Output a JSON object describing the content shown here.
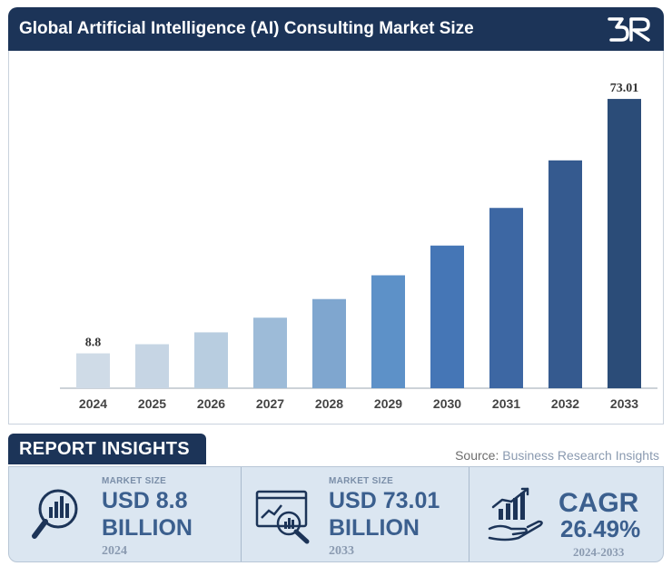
{
  "header": {
    "title": "Global Artificial Intelligence (AI) Consulting Market Size"
  },
  "chart_data": {
    "type": "bar",
    "categories": [
      "2024",
      "2025",
      "2026",
      "2027",
      "2028",
      "2029",
      "2030",
      "2031",
      "2032",
      "2033"
    ],
    "values": [
      8.8,
      11.1,
      14.1,
      17.8,
      22.5,
      28.5,
      36.0,
      45.5,
      57.5,
      73.01
    ],
    "data_labels": [
      "8.8",
      "",
      "",
      "",
      "",
      "",
      "",
      "",
      "",
      "73.01"
    ],
    "colors": [
      "#cfdbe7",
      "#c6d5e4",
      "#b8cde0",
      "#9dbbd8",
      "#7fa6cf",
      "#5d91c8",
      "#4576b6",
      "#3d67a3",
      "#355a8f",
      "#2b4c78"
    ],
    "title": "",
    "xlabel": "",
    "ylabel": "",
    "ylim": [
      0,
      76
    ],
    "grid": false
  },
  "insights": {
    "tag": "REPORT INSIGHTS",
    "source_label": "Source:",
    "source_value": "Business Research Insights",
    "cards": [
      {
        "label": "MARKET SIZE",
        "value_line1": "USD 8.8",
        "value_line2": "BILLION",
        "year": "2024",
        "icon": "magnifier-chart-icon"
      },
      {
        "label": "MARKET SIZE",
        "value_line1": "USD 73.01",
        "value_line2": "BILLION",
        "year": "2033",
        "icon": "monitor-analysis-icon"
      },
      {
        "label": "",
        "value_line1": "CAGR",
        "value_line2": "26.49%",
        "year": "2024-2033",
        "icon": "hand-growth-icon"
      }
    ]
  }
}
